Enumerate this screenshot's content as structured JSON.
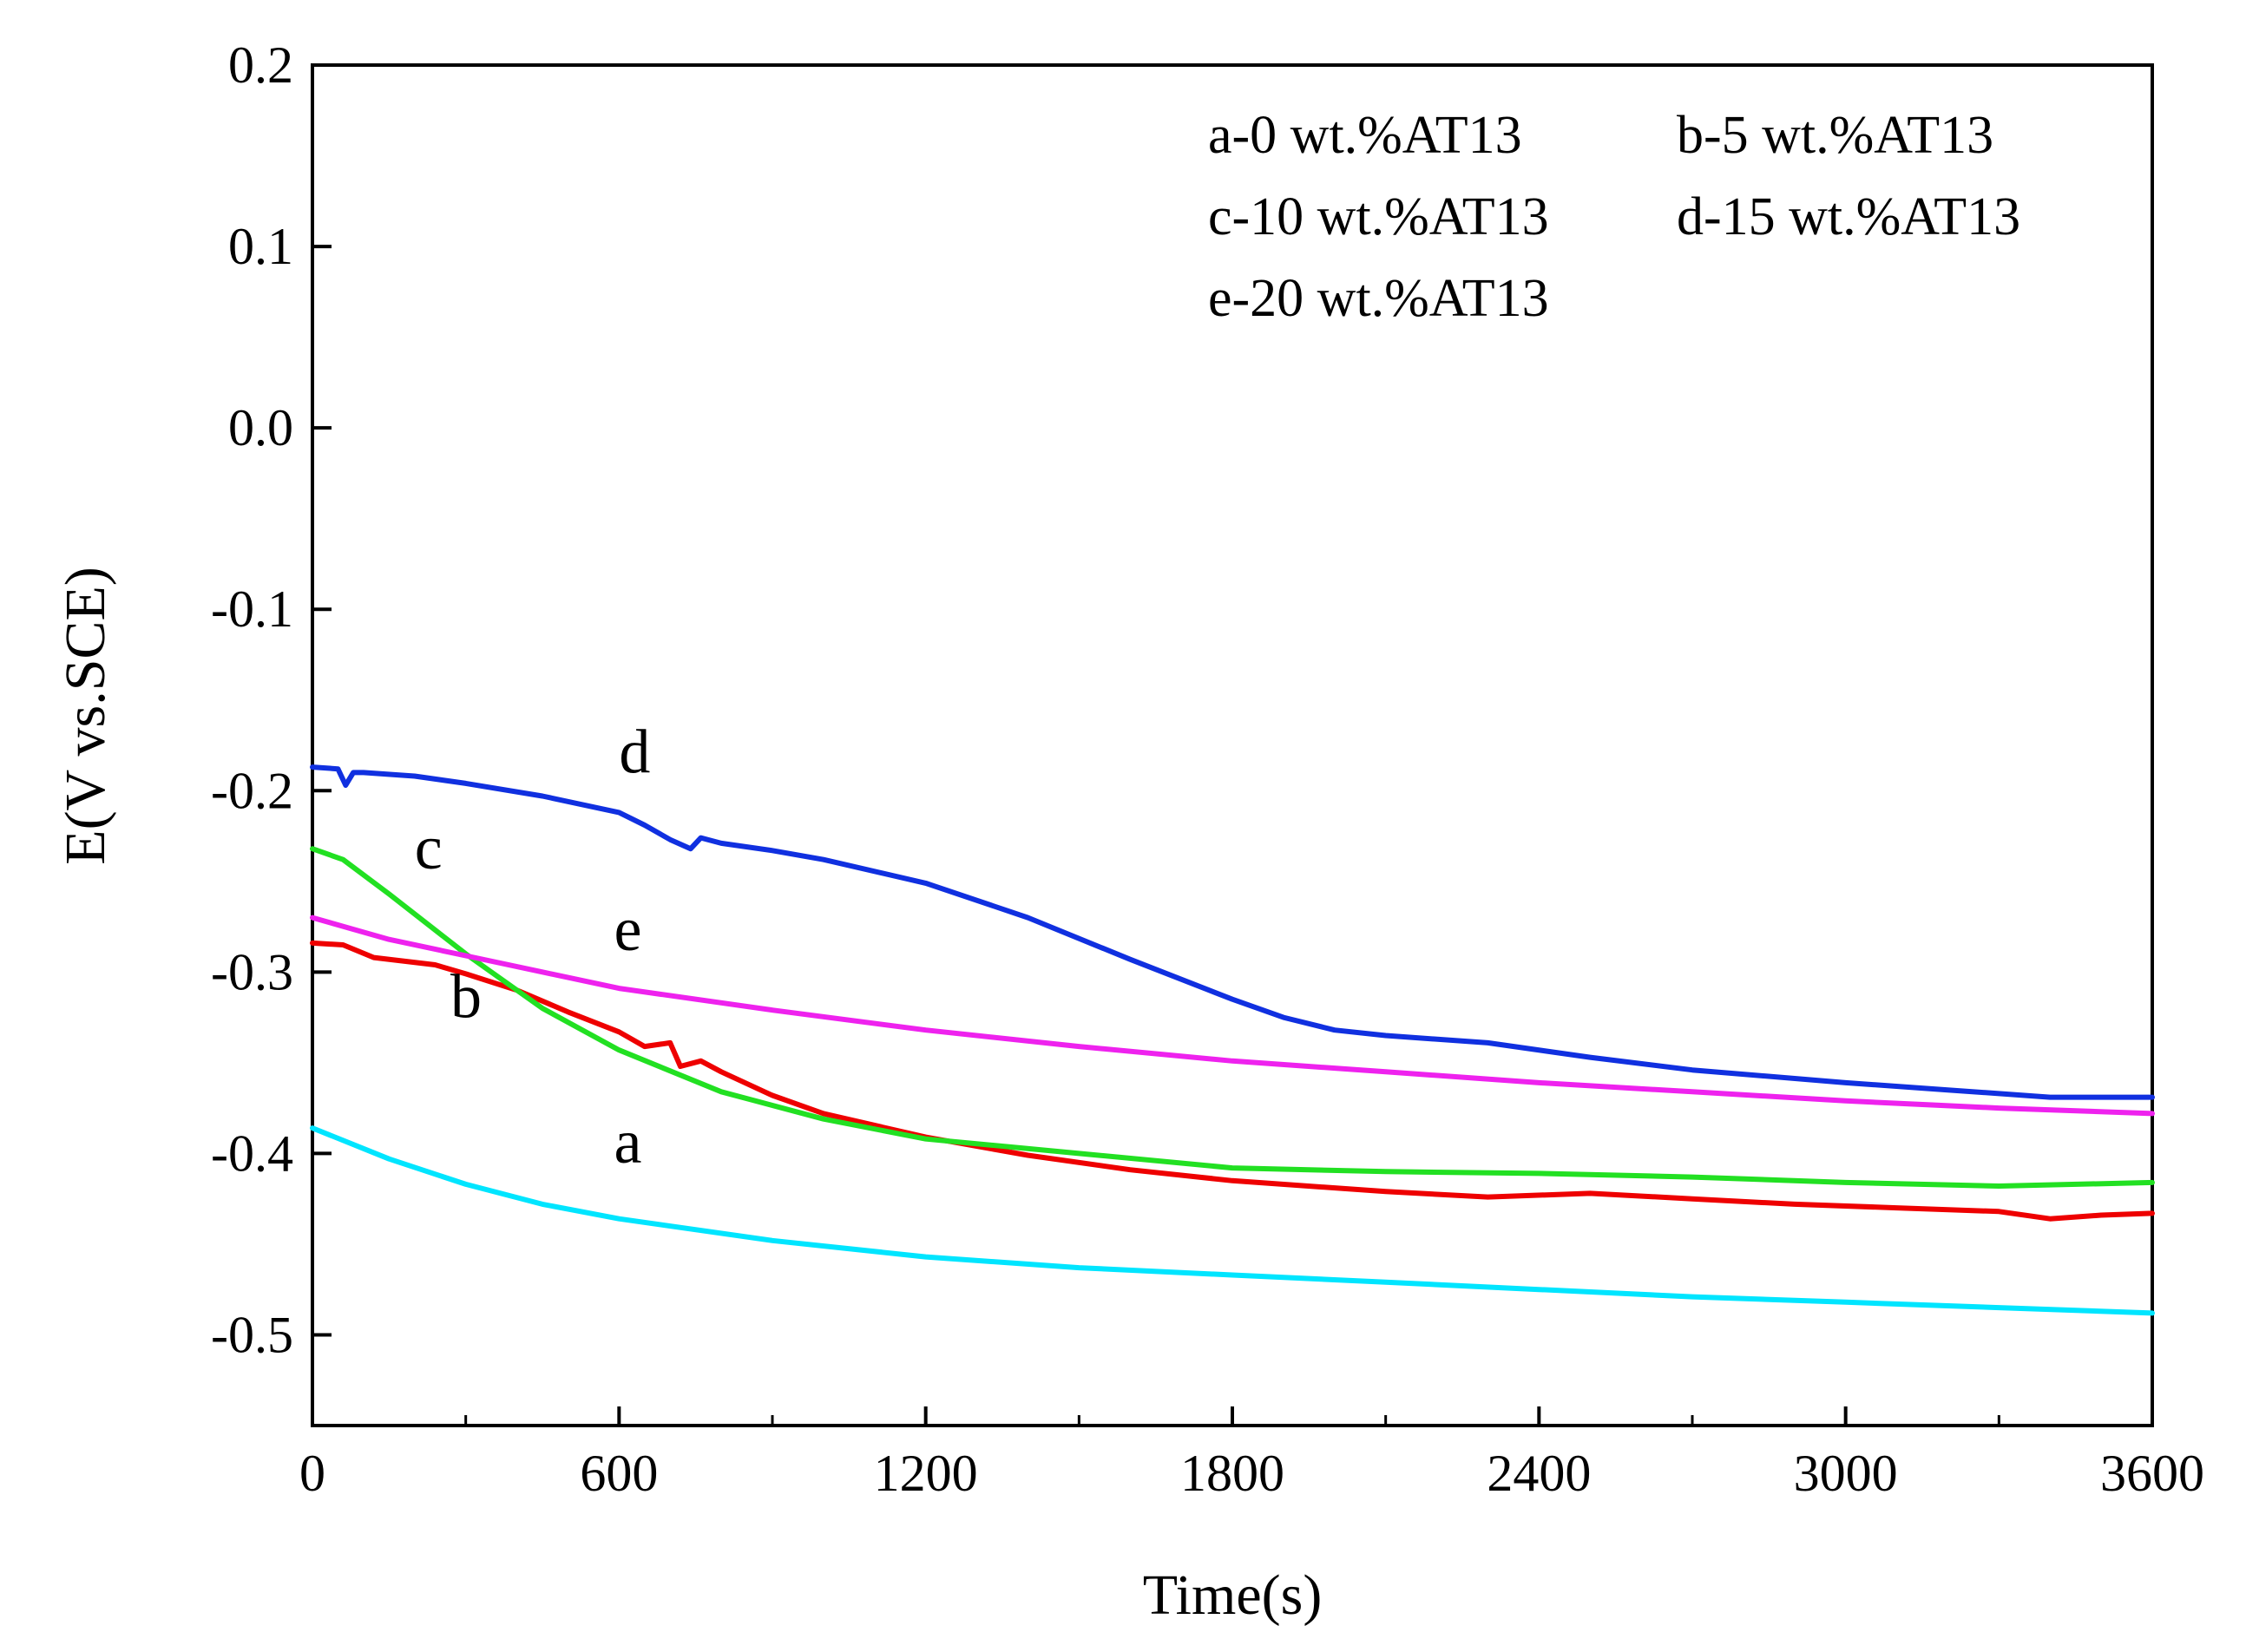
{
  "chart_data": {
    "type": "line",
    "title": "",
    "xlabel": "Time(s)",
    "ylabel": "E(V vs.SCE)",
    "xlim": [
      0,
      3600
    ],
    "ylim": [
      -0.55,
      0.2
    ],
    "x_ticks": [
      0,
      600,
      1200,
      1800,
      2400,
      3000,
      3600
    ],
    "x_tick_labels": [
      "0",
      "600",
      "1200",
      "1800",
      "2400",
      "3000",
      "3600"
    ],
    "y_ticks": [
      0.2,
      0.1,
      0.0,
      -0.1,
      -0.2,
      -0.3,
      -0.4,
      -0.5
    ],
    "y_tick_labels": [
      "0.2",
      "0.1",
      "0.0",
      "-0.1",
      "-0.2",
      "-0.3",
      "-0.4",
      "-0.5"
    ],
    "grid": false,
    "legend": {
      "position": "top-right",
      "entries": [
        "a-0 wt.%AT13",
        "b-5 wt.%AT13",
        "c-10 wt.%AT13",
        "d-15 wt.%AT13",
        "e-20 wt.%AT13"
      ]
    },
    "series": [
      {
        "name": "a-0 wt.%AT13",
        "label": "a",
        "color": "#00e5ff",
        "x": [
          0,
          150,
          300,
          450,
          600,
          900,
          1200,
          1500,
          1800,
          2100,
          2400,
          2700,
          3000,
          3300,
          3600
        ],
        "y": [
          -0.386,
          -0.403,
          -0.417,
          -0.428,
          -0.436,
          -0.448,
          -0.457,
          -0.463,
          -0.467,
          -0.471,
          -0.475,
          -0.479,
          -0.482,
          -0.485,
          -0.488
        ]
      },
      {
        "name": "b-5 wt.%AT13",
        "label": "b",
        "color": "#ee0000",
        "x": [
          0,
          60,
          120,
          240,
          300,
          400,
          500,
          600,
          650,
          700,
          720,
          760,
          800,
          900,
          1000,
          1200,
          1400,
          1600,
          1800,
          2100,
          2300,
          2500,
          2700,
          2900,
          3100,
          3300,
          3400,
          3500,
          3600
        ],
        "y": [
          -0.284,
          -0.285,
          -0.292,
          -0.296,
          -0.301,
          -0.31,
          -0.322,
          -0.333,
          -0.341,
          -0.339,
          -0.352,
          -0.349,
          -0.355,
          -0.368,
          -0.378,
          -0.391,
          -0.401,
          -0.409,
          -0.415,
          -0.421,
          -0.424,
          -0.422,
          -0.425,
          -0.428,
          -0.43,
          -0.432,
          -0.436,
          -0.434,
          -0.433
        ]
      },
      {
        "name": "c-10 wt.%AT13",
        "label": "c",
        "color": "#22e022",
        "x": [
          0,
          60,
          150,
          300,
          450,
          600,
          800,
          1000,
          1200,
          1500,
          1800,
          2100,
          2400,
          2700,
          3000,
          3300,
          3600
        ],
        "y": [
          -0.232,
          -0.238,
          -0.257,
          -0.29,
          -0.32,
          -0.343,
          -0.366,
          -0.381,
          -0.392,
          -0.4,
          -0.408,
          -0.41,
          -0.411,
          -0.413,
          -0.416,
          -0.418,
          -0.416
        ]
      },
      {
        "name": "d-15 wt.%AT13",
        "label": "d",
        "color": "#1030e0",
        "x": [
          0,
          50,
          65,
          80,
          100,
          200,
          300,
          450,
          600,
          650,
          700,
          740,
          760,
          800,
          900,
          1000,
          1200,
          1400,
          1600,
          1800,
          1900,
          2000,
          2100,
          2300,
          2500,
          2700,
          3000,
          3200,
          3400,
          3600
        ],
        "y": [
          -0.187,
          -0.188,
          -0.197,
          -0.19,
          -0.19,
          -0.192,
          -0.196,
          -0.203,
          -0.212,
          -0.219,
          -0.227,
          -0.232,
          -0.226,
          -0.229,
          -0.233,
          -0.238,
          -0.251,
          -0.27,
          -0.293,
          -0.315,
          -0.325,
          -0.332,
          -0.335,
          -0.339,
          -0.347,
          -0.354,
          -0.361,
          -0.365,
          -0.369,
          -0.369
        ]
      },
      {
        "name": "e-20 wt.%AT13",
        "label": "e",
        "color": "#ee22ee",
        "x": [
          0,
          150,
          300,
          450,
          600,
          900,
          1200,
          1500,
          1800,
          2100,
          2400,
          2700,
          3000,
          3300,
          3600
        ],
        "y": [
          -0.27,
          -0.282,
          -0.291,
          -0.3,
          -0.309,
          -0.321,
          -0.332,
          -0.341,
          -0.349,
          -0.355,
          -0.361,
          -0.366,
          -0.371,
          -0.375,
          -0.378
        ]
      }
    ],
    "curve_labels": [
      {
        "text": "a",
        "x": 590,
        "y": -0.405
      },
      {
        "text": "b",
        "x": 270,
        "y": -0.325
      },
      {
        "text": "c",
        "x": 200,
        "y": -0.243
      },
      {
        "text": "d",
        "x": 600,
        "y": -0.19
      },
      {
        "text": "e",
        "x": 590,
        "y": -0.288
      }
    ]
  }
}
